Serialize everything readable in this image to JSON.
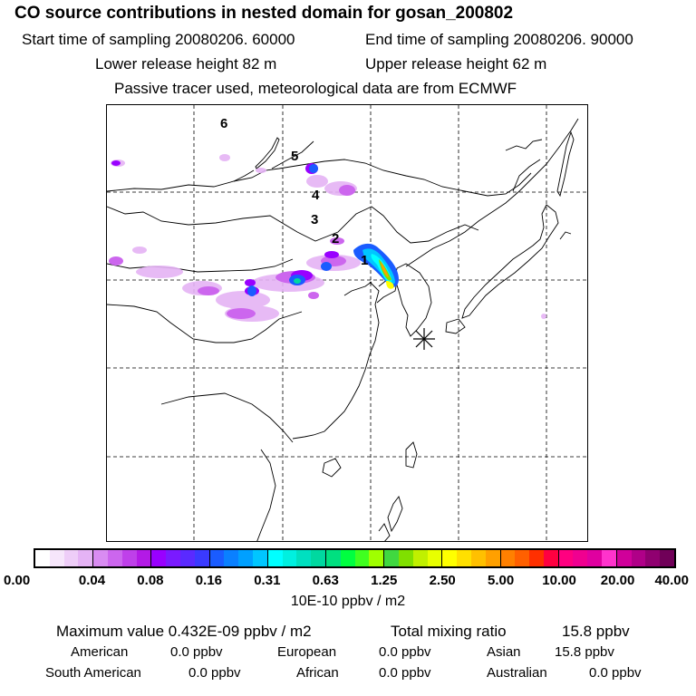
{
  "header": {
    "title": "CO  source contributions in nested domain for gosan_200802",
    "start_label": "Start time of sampling 20080206. 60000",
    "end_label": "End time of sampling 20080206. 90000",
    "lower_label": "Lower release height   82 m",
    "upper_label": "Upper release height   62 m",
    "tracer_label": "Passive tracer used, meteorological data are from ECMWF"
  },
  "map": {
    "receptor_marker": "asterisk-icon",
    "trajectory_labels": [
      "1",
      "2",
      "3",
      "4",
      "5",
      "6"
    ]
  },
  "colorbar": {
    "ticks": [
      "0.00",
      "0.04",
      "0.08",
      "0.16",
      "0.31",
      "0.63",
      "1.25",
      "2.50",
      "5.00",
      "10.00",
      "20.00",
      "40.00"
    ],
    "colors": [
      "#ffffff",
      "#f6e6fb",
      "#eecdf8",
      "#e5b3f5",
      "#d98cf2",
      "#cc66ee",
      "#bf40ea",
      "#b31ae6",
      "#9900ff",
      "#7a1aff",
      "#5a2aff",
      "#3a3aff",
      "#1a5cff",
      "#0a80ff",
      "#00a0ff",
      "#00c6ff",
      "#00ffff",
      "#00f0e0",
      "#00e0c0",
      "#00d8a0",
      "#00e080",
      "#00ff40",
      "#40ff20",
      "#a0ff00",
      "#40d840",
      "#80e000",
      "#c0f000",
      "#e8ff00",
      "#ffff00",
      "#ffe000",
      "#ffc000",
      "#ffa000",
      "#ff8000",
      "#ff6000",
      "#ff3000",
      "#ff0040",
      "#ff0080",
      "#f00090",
      "#e000a0",
      "#ff33cc",
      "#d0009a",
      "#b00088",
      "#900070",
      "#700058"
    ],
    "unit": "10E-10 ppbv / m2"
  },
  "summary": {
    "max_label": "Maximum value  0.432E-09 ppbv / m2",
    "total_label": "Total mixing ratio",
    "total_value": "15.8 ppbv",
    "american_label": "American",
    "american_value": "0.0 ppbv",
    "european_label": "European",
    "european_value": "0.0 ppbv",
    "asian_label": "Asian",
    "asian_value": "15.8 ppbv",
    "south_american_label": "South American",
    "south_american_value": "0.0 ppbv",
    "african_label": "African",
    "african_value": "0.0 ppbv",
    "australian_label": "Australian",
    "australian_value": "0.0 ppbv"
  }
}
